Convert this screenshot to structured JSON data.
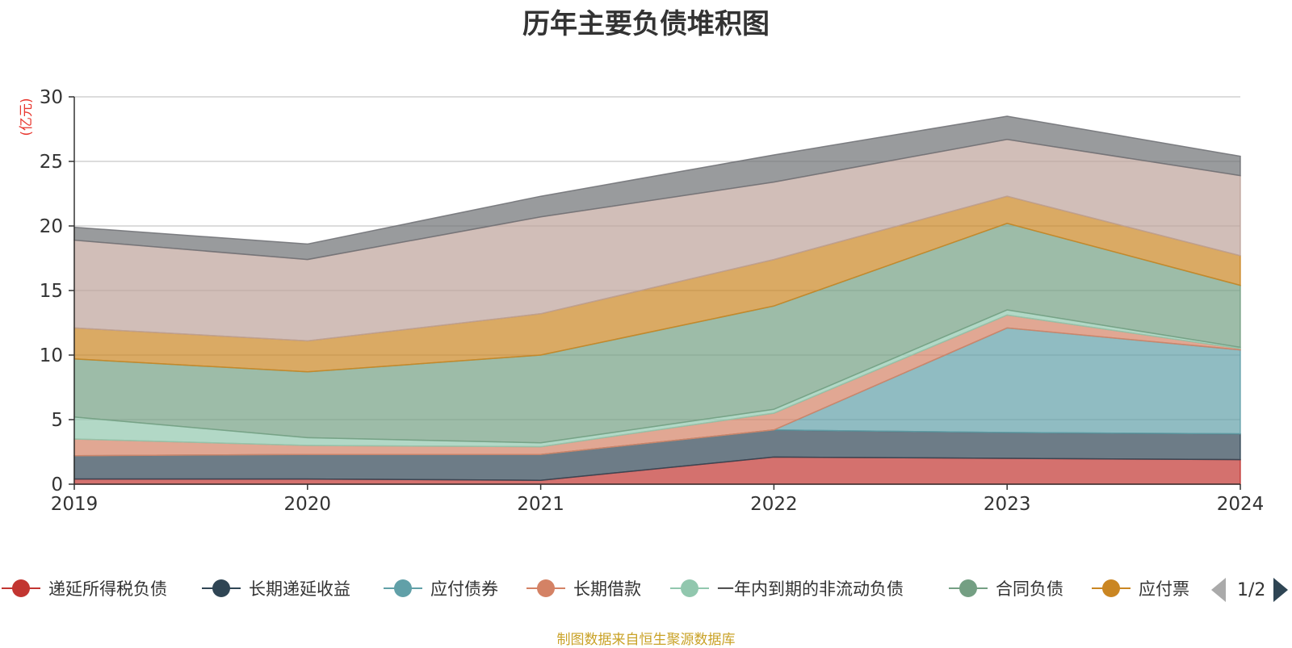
{
  "chart_data": {
    "type": "area",
    "stacked": true,
    "title": "历年主要负债堆积图",
    "ylabel": "(亿元)",
    "xlabel": "",
    "x": [
      "2019",
      "2020",
      "2021",
      "2022",
      "2023",
      "2024"
    ],
    "ylim": [
      0,
      30
    ],
    "yticks": [
      0,
      5,
      10,
      15,
      20,
      25,
      30
    ],
    "grid": true,
    "legend_position": "bottom",
    "series": [
      {
        "name": "递延所得税负债",
        "color": "#c23531",
        "values": [
          0.4,
          0.4,
          0.3,
          2.1,
          2.0,
          1.9
        ]
      },
      {
        "name": "长期递延收益",
        "color": "#2f4554",
        "values": [
          1.8,
          1.9,
          2.0,
          2.1,
          2.0,
          2.0
        ]
      },
      {
        "name": "应付债券",
        "color": "#61a0a8",
        "values": [
          0.0,
          0.0,
          0.0,
          0.0,
          8.1,
          6.5
        ]
      },
      {
        "name": "长期借款",
        "color": "#d48265",
        "values": [
          1.3,
          0.7,
          0.6,
          1.3,
          1.0,
          0.1
        ]
      },
      {
        "name": "一年内到期的非流动负债",
        "color": "#91c7ae",
        "values": [
          1.7,
          0.6,
          0.3,
          0.3,
          0.4,
          0.1
        ]
      },
      {
        "name": "合同负债",
        "color": "#749f83",
        "values": [
          4.5,
          5.1,
          6.8,
          8.0,
          6.7,
          4.8
        ]
      },
      {
        "name": "应付票",
        "color": "#ca8622",
        "values": [
          2.4,
          2.4,
          3.2,
          3.6,
          2.1,
          2.3
        ]
      },
      {
        "name": "",
        "color": "#bda29a",
        "values": [
          6.8,
          6.3,
          7.5,
          6.0,
          4.4,
          6.2
        ]
      },
      {
        "name": "",
        "color": "#6e7074",
        "values": [
          1.0,
          1.2,
          1.6,
          2.1,
          1.8,
          1.5
        ]
      }
    ]
  },
  "legend": {
    "items": [
      {
        "label": "递延所得税负债",
        "color": "#c23531"
      },
      {
        "label": "长期递延收益",
        "color": "#2f4554"
      },
      {
        "label": "应付债券",
        "color": "#61a0a8"
      },
      {
        "label": "长期借款",
        "color": "#d48265"
      },
      {
        "label": "一年内到期的非流动负债",
        "color": "#91c7ae"
      },
      {
        "label": "合同负债",
        "color": "#749f83"
      },
      {
        "label": "应付票",
        "color": "#ca8622"
      }
    ],
    "page_text": "1/2"
  },
  "footer": {
    "source": "制图数据来自恒生聚源数据库"
  }
}
